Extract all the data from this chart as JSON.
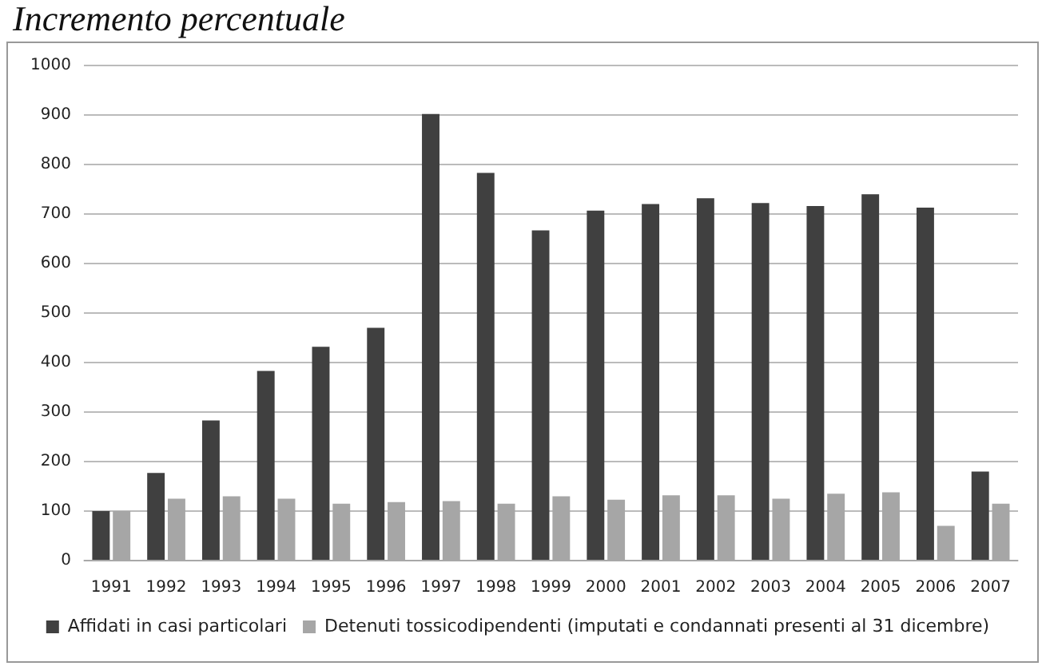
{
  "chart_data": {
    "type": "bar",
    "title": "Incremento percentuale",
    "categories": [
      "1991",
      "1992",
      "1993",
      "1994",
      "1995",
      "1996",
      "1997",
      "1998",
      "1999",
      "2000",
      "2001",
      "2002",
      "2003",
      "2004",
      "2005",
      "2006",
      "2007"
    ],
    "series": [
      {
        "name": "Affidati in casi particolari",
        "color": "#404040",
        "values": [
          100,
          177,
          283,
          383,
          432,
          470,
          902,
          783,
          667,
          707,
          720,
          732,
          722,
          716,
          740,
          713,
          180
        ]
      },
      {
        "name": "Detenuti tossicodipendenti (imputati e condannati presenti al 31 dicembre)",
        "color": "#a6a6a6",
        "values": [
          100,
          125,
          130,
          125,
          115,
          118,
          120,
          115,
          130,
          123,
          132,
          132,
          125,
          135,
          138,
          70,
          115
        ]
      }
    ],
    "ylim": [
      0,
      1000
    ],
    "yticks": [
      0,
      100,
      200,
      300,
      400,
      500,
      600,
      700,
      800,
      900,
      1000
    ],
    "grid": "y",
    "legend": "bottom"
  }
}
